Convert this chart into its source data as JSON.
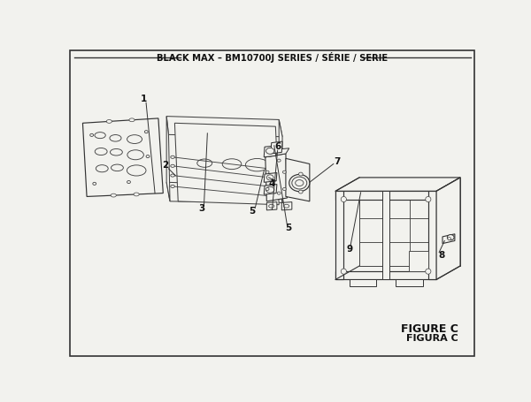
{
  "title": "BLACK MAX – BM10700J SERIES / SÉRIE / SERIE",
  "figure_label": "FIGURE C",
  "figura_label": "FIGURA C",
  "bg_color": "#f2f2ee",
  "border_color": "#333333",
  "line_color": "#333333",
  "lw_main": 1.0,
  "lw_thin": 0.7
}
